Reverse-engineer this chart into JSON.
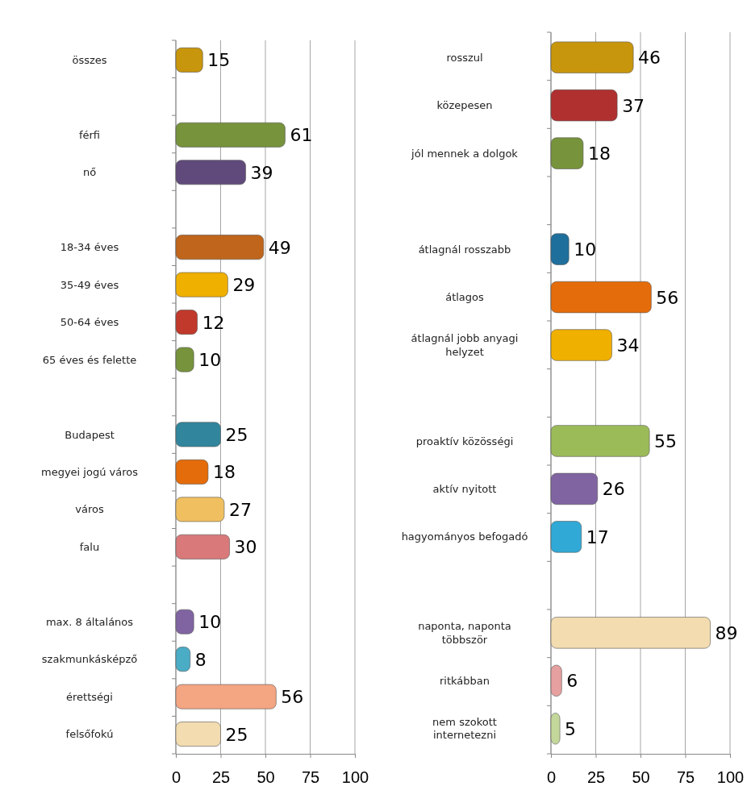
{
  "chart_data": [
    {
      "type": "bar",
      "orientation": "horizontal",
      "categories": [
        "összes",
        null,
        "férfi",
        "nő",
        null,
        "18-34 éves",
        "35-49 éves",
        "50-64 éves",
        "65 éves és felette",
        null,
        "Budapest",
        "megyei jogú város",
        "város",
        "falu",
        null,
        "max. 8 általános",
        "szakmunkásképző",
        "érettségi",
        "felsőfokú"
      ],
      "values": [
        15,
        null,
        61,
        39,
        null,
        49,
        29,
        12,
        10,
        null,
        25,
        18,
        27,
        30,
        null,
        10,
        8,
        56,
        25
      ],
      "colors": [
        "#c8960c",
        null,
        "#77933c",
        "#604a7b",
        null,
        "#c0651c",
        "#f0b000",
        "#c0392b",
        "#77933c",
        null,
        "#31859c",
        "#e46c0a",
        "#f0c060",
        "#d9797a",
        null,
        "#8064a2",
        "#4bacc6",
        "#f4a582",
        "#f2dcb0"
      ],
      "xlim": [
        0,
        100
      ],
      "xticks": [
        0,
        25,
        50,
        75,
        100
      ],
      "grid": "x",
      "data_labels": true
    },
    {
      "type": "bar",
      "orientation": "horizontal",
      "categories": [
        "rosszul",
        "közepesen",
        "jól mennek a dolgok",
        null,
        "átlagnál rosszabb",
        "átlagos",
        "átlagnál jobb anyagi helyzet",
        null,
        "proaktív közösségi",
        "aktív nyitott",
        "hagyományos befogadó",
        null,
        "naponta, naponta többször",
        "ritkábban",
        "nem szokott internetezni"
      ],
      "values": [
        46,
        37,
        18,
        null,
        10,
        56,
        34,
        null,
        55,
        26,
        17,
        null,
        89,
        6,
        5
      ],
      "colors": [
        "#c8960c",
        "#b03030",
        "#77933c",
        null,
        "#1f6f9c",
        "#e46c0a",
        "#f0b000",
        null,
        "#9bbb59",
        "#8064a2",
        "#31a9d6",
        null,
        "#f2dcb0",
        "#e6a0a0",
        "#c4d79b"
      ],
      "xlim": [
        0,
        100
      ],
      "xticks": [
        0,
        25,
        50,
        75,
        100
      ],
      "grid": "x",
      "data_labels": true
    }
  ]
}
